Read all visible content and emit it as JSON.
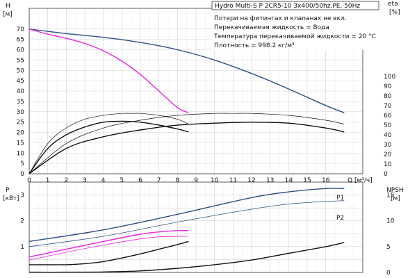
{
  "chart_data": [
    {
      "type": "line",
      "title": "",
      "legend_placement": "top-right",
      "info_box": {
        "header": "Hydro Multi-S P 2CR5-10 3x400/50hz,PE, 50Hz",
        "lines": [
          "Потери на фитингах и клапанах не вкл.",
          "Перекачиваемая жидкость = Вода",
          "Температура перекачиваемой жидкости = 20 °C",
          "Плотность = 998.2 кг/м³"
        ]
      },
      "xlabel": "Q [м³/ч]",
      "xlim": [
        0,
        18
      ],
      "x_ticks": [
        "0",
        "1",
        "2",
        "3",
        "4",
        "5",
        "6",
        "7",
        "8",
        "9",
        "10",
        "11",
        "12",
        "13",
        "14",
        "15",
        "16"
      ],
      "ylabel_left": [
        "H",
        "[м]"
      ],
      "ylim_left": [
        0,
        80
      ],
      "y_ticks_left": [
        "0",
        "5",
        "10",
        "15",
        "20",
        "25",
        "30",
        "35",
        "40",
        "45",
        "50",
        "55",
        "60",
        "65",
        "70"
      ],
      "ylabel_right": [
        "eta",
        "[%]"
      ],
      "ylim_right": [
        0,
        170
      ],
      "y_ticks_right": [
        "0",
        "10",
        "20",
        "30",
        "40",
        "50",
        "60",
        "70",
        "80",
        "90",
        "100"
      ],
      "grid": true,
      "series": [
        {
          "axis": "H",
          "color": "#2b4f80",
          "x": [
            0,
            2,
            4,
            6,
            8,
            10,
            12,
            14,
            16,
            17
          ],
          "y": [
            70,
            67.8,
            66,
            63.5,
            60,
            55,
            48.5,
            41,
            33,
            29.5
          ]
        },
        {
          "axis": "H",
          "color": "#ee22dd",
          "x": [
            0,
            1,
            2,
            3,
            4,
            5,
            6,
            7,
            8,
            8.6
          ],
          "y": [
            70,
            67.5,
            65.5,
            63,
            59.5,
            54.5,
            48,
            40,
            32,
            29.5
          ]
        },
        {
          "axis": "eta",
          "color": "#111111",
          "x": [
            0,
            1,
            2,
            3,
            4,
            5,
            6,
            7,
            8,
            8.6
          ],
          "y": [
            0,
            26,
            40,
            48,
            53,
            54,
            53,
            50,
            46,
            43
          ]
        },
        {
          "axis": "eta",
          "color": "#111111",
          "x": [
            0,
            1,
            2,
            3,
            4,
            5,
            5.5,
            6,
            7,
            8,
            8.6
          ],
          "y": [
            0,
            31,
            47,
            56,
            60,
            62,
            62,
            62,
            60,
            56,
            51
          ]
        },
        {
          "axis": "eta",
          "color": "#111111",
          "x": [
            0,
            2,
            4,
            6,
            8,
            10,
            12,
            14,
            16,
            17
          ],
          "y": [
            0,
            26,
            38,
            45,
            50,
            52,
            53,
            52,
            47,
            43
          ]
        },
        {
          "axis": "eta",
          "color": "#111111",
          "x": [
            0,
            2,
            4,
            6,
            8,
            10,
            11,
            12,
            14,
            16,
            17
          ],
          "y": [
            0,
            31,
            47,
            55,
            60,
            62,
            62,
            62,
            60,
            55,
            51
          ]
        }
      ]
    },
    {
      "type": "line",
      "title": "",
      "xlabel": "",
      "xlim": [
        0,
        18
      ],
      "ylabel_left": [
        "P",
        "[кВт]"
      ],
      "ylim_left": [
        0,
        3.5
      ],
      "y_ticks_left": [
        "1",
        "2",
        "3"
      ],
      "ylabel_right": [
        "NPSH",
        "[м]"
      ],
      "ylim_right": [
        0,
        17.5
      ],
      "y_ticks_right": [
        "0",
        "5",
        "10",
        "15"
      ],
      "grid": true,
      "series": [
        {
          "name": "P1",
          "axis": "P",
          "color": "#2b4f80",
          "x": [
            0,
            4,
            8,
            12,
            14,
            16,
            17
          ],
          "y": [
            1.2,
            1.65,
            2.25,
            2.9,
            3.12,
            3.25,
            3.25
          ]
        },
        {
          "name": "P2",
          "axis": "P",
          "color": "#2b4f80",
          "x": [
            0,
            4,
            8,
            12,
            14,
            16,
            17
          ],
          "y": [
            1.0,
            1.4,
            1.95,
            2.45,
            2.65,
            2.75,
            2.78
          ]
        },
        {
          "axis": "P",
          "color": "#ee22dd",
          "x": [
            0,
            2,
            4,
            6,
            7,
            8,
            8.6
          ],
          "y": [
            0.6,
            0.9,
            1.2,
            1.48,
            1.57,
            1.62,
            1.62
          ]
        },
        {
          "axis": "P",
          "color": "#ee22dd",
          "x": [
            0,
            2,
            4,
            6,
            7,
            8,
            8.6
          ],
          "y": [
            0.48,
            0.78,
            1.06,
            1.3,
            1.38,
            1.4,
            1.4
          ]
        },
        {
          "axis": "NPSH",
          "color": "#111111",
          "x": [
            0,
            2,
            3,
            4,
            5,
            6,
            7,
            8,
            8.6
          ],
          "y": [
            1.5,
            1.5,
            1.7,
            2.1,
            2.8,
            3.6,
            4.5,
            5.4,
            6.0
          ]
        },
        {
          "axis": "NPSH",
          "color": "#111111",
          "x": [
            0,
            2,
            4,
            6,
            8,
            10,
            12,
            14,
            16,
            17
          ],
          "y": [
            0.05,
            0.05,
            0.1,
            0.3,
            0.8,
            1.5,
            2.4,
            3.7,
            5.0,
            5.8
          ]
        }
      ]
    }
  ]
}
